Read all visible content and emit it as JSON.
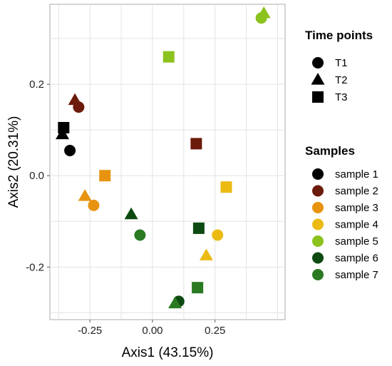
{
  "chart_data": {
    "type": "scatter",
    "xlabel": "Axis1 (43.15%)",
    "ylabel": "Axis2 (20.31%)",
    "xlim": [
      -0.41,
      0.53
    ],
    "ylim": [
      -0.315,
      0.375
    ],
    "x_ticks": [
      -0.25,
      0.0,
      0.25
    ],
    "x_tick_labels": [
      "-0.25",
      "0.00",
      "0.25"
    ],
    "y_ticks": [
      -0.2,
      0.0,
      0.2
    ],
    "y_tick_labels": [
      "-0.2",
      "0.0",
      "0.2"
    ],
    "grid": true,
    "legend_placement": "right",
    "time_legend": {
      "title": "Time points",
      "items": [
        {
          "label": "T1",
          "shape": "circle"
        },
        {
          "label": "T2",
          "shape": "triangle"
        },
        {
          "label": "T3",
          "shape": "square"
        }
      ]
    },
    "sample_legend": {
      "title": "Samples",
      "items": [
        {
          "label": "sample 1",
          "color": "#000000"
        },
        {
          "label": "sample 2",
          "color": "#6b1a0c"
        },
        {
          "label": "sample 3",
          "color": "#e8930f"
        },
        {
          "label": "sample 4",
          "color": "#ebbb13"
        },
        {
          "label": "sample 5",
          "color": "#8cc21d"
        },
        {
          "label": "sample 6",
          "color": "#0c4a12"
        },
        {
          "label": "sample 7",
          "color": "#2a7a22"
        }
      ]
    },
    "points": [
      {
        "sample": 0,
        "time": 0,
        "x": -0.33,
        "y": 0.055
      },
      {
        "sample": 0,
        "time": 1,
        "x": -0.36,
        "y": 0.09
      },
      {
        "sample": 0,
        "time": 2,
        "x": -0.355,
        "y": 0.105
      },
      {
        "sample": 1,
        "time": 0,
        "x": -0.295,
        "y": 0.15
      },
      {
        "sample": 1,
        "time": 1,
        "x": -0.31,
        "y": 0.165
      },
      {
        "sample": 1,
        "time": 2,
        "x": 0.175,
        "y": 0.07
      },
      {
        "sample": 2,
        "time": 0,
        "x": -0.235,
        "y": -0.065
      },
      {
        "sample": 2,
        "time": 1,
        "x": -0.27,
        "y": -0.045
      },
      {
        "sample": 2,
        "time": 2,
        "x": -0.19,
        "y": 0.0
      },
      {
        "sample": 3,
        "time": 0,
        "x": 0.26,
        "y": -0.13
      },
      {
        "sample": 3,
        "time": 1,
        "x": 0.215,
        "y": -0.175
      },
      {
        "sample": 3,
        "time": 2,
        "x": 0.295,
        "y": -0.025
      },
      {
        "sample": 4,
        "time": 0,
        "x": 0.435,
        "y": 0.345
      },
      {
        "sample": 4,
        "time": 1,
        "x": 0.445,
        "y": 0.355
      },
      {
        "sample": 4,
        "time": 2,
        "x": 0.065,
        "y": 0.26
      },
      {
        "sample": 5,
        "time": 0,
        "x": 0.105,
        "y": -0.275
      },
      {
        "sample": 5,
        "time": 1,
        "x": -0.085,
        "y": -0.085
      },
      {
        "sample": 5,
        "time": 2,
        "x": 0.185,
        "y": -0.115
      },
      {
        "sample": 6,
        "time": 0,
        "x": -0.05,
        "y": -0.13
      },
      {
        "sample": 6,
        "time": 1,
        "x": 0.09,
        "y": -0.28
      },
      {
        "sample": 6,
        "time": 2,
        "x": 0.18,
        "y": -0.245
      }
    ]
  }
}
